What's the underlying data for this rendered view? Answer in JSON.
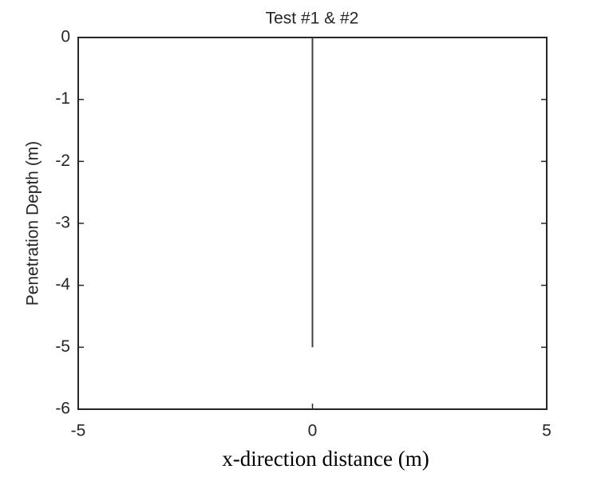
{
  "chart_data": {
    "type": "line",
    "title": "Test #1 & #2",
    "xlabel": "x-direction distance (m)",
    "ylabel": "Penetration Depth (m)",
    "xlim": [
      -5,
      5
    ],
    "xticks": [
      -5,
      0,
      5
    ],
    "ylim": [
      -6,
      0
    ],
    "yticks": [
      0,
      -1,
      -2,
      -3,
      -4,
      -5,
      -6
    ],
    "series": [
      {
        "x": [
          0,
          0
        ],
        "values": [
          0,
          -5
        ],
        "color": "#404040"
      }
    ],
    "box": true
  }
}
